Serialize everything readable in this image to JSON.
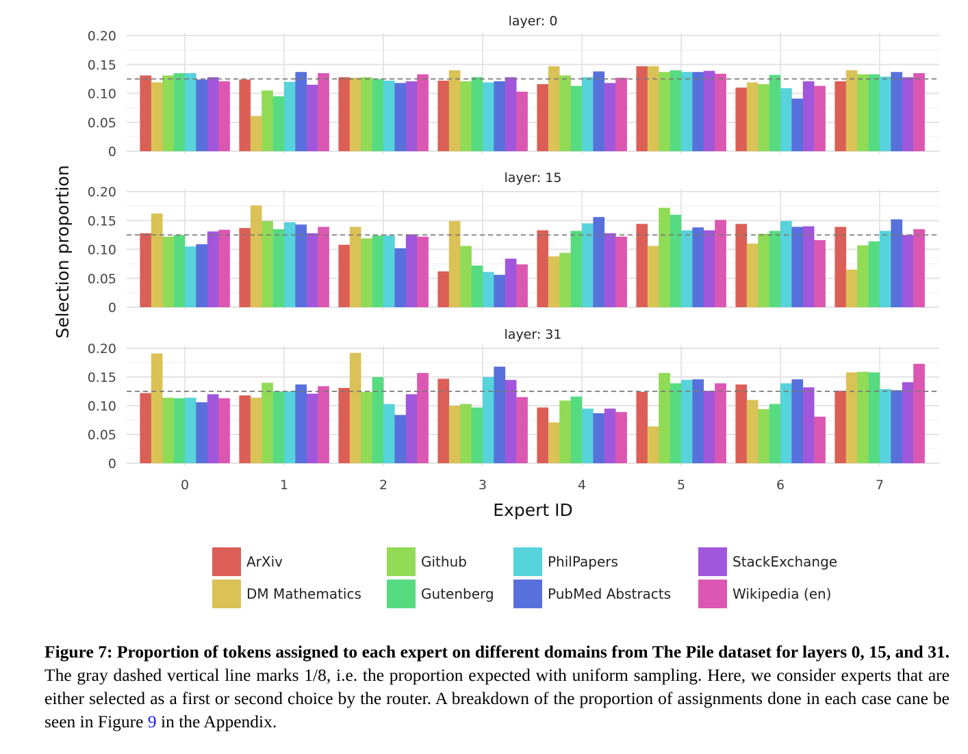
{
  "chart_data": {
    "type": "bar",
    "xlabel": "Expert ID",
    "ylabel": "Selection proportion",
    "ylim": [
      0,
      0.2
    ],
    "yticks": [
      "0",
      "0.05",
      "0.10",
      "0.15",
      "0.20"
    ],
    "yticks_values": [
      0,
      0.05,
      0.1,
      0.15,
      0.2
    ],
    "categories": [
      "0",
      "1",
      "2",
      "3",
      "4",
      "5",
      "6",
      "7"
    ],
    "reference_line": 0.125,
    "grid": true,
    "legend_position": "bottom",
    "series_names": [
      "ArXiv",
      "DM Mathematics",
      "Github",
      "Gutenberg",
      "PhilPapers",
      "PubMed Abstracts",
      "StackExchange",
      "Wikipedia (en)"
    ],
    "series_colors": [
      "#db5f57",
      "#dbc257",
      "#91db57",
      "#57db80",
      "#57d3db",
      "#5770db",
      "#a157db",
      "#db57b2"
    ],
    "legend_order": [
      0,
      2,
      4,
      6,
      1,
      3,
      5,
      7
    ],
    "panels": [
      {
        "title": "layer: 0",
        "values_by_expert": [
          [
            0.131,
            0.119,
            0.131,
            0.135,
            0.135,
            0.124,
            0.128,
            0.121
          ],
          [
            0.124,
            0.061,
            0.105,
            0.095,
            0.12,
            0.137,
            0.115,
            0.135
          ],
          [
            0.128,
            0.127,
            0.128,
            0.125,
            0.122,
            0.118,
            0.121,
            0.133
          ],
          [
            0.122,
            0.14,
            0.121,
            0.128,
            0.119,
            0.121,
            0.128,
            0.103
          ],
          [
            0.116,
            0.147,
            0.131,
            0.113,
            0.128,
            0.138,
            0.118,
            0.127
          ],
          [
            0.147,
            0.147,
            0.137,
            0.14,
            0.137,
            0.137,
            0.139,
            0.134
          ],
          [
            0.11,
            0.119,
            0.116,
            0.132,
            0.109,
            0.091,
            0.121,
            0.113
          ],
          [
            0.121,
            0.14,
            0.133,
            0.133,
            0.129,
            0.137,
            0.128,
            0.135
          ]
        ]
      },
      {
        "title": "layer: 15",
        "values_by_expert": [
          [
            0.128,
            0.162,
            0.122,
            0.125,
            0.105,
            0.109,
            0.131,
            0.134
          ],
          [
            0.137,
            0.176,
            0.149,
            0.135,
            0.147,
            0.143,
            0.128,
            0.139
          ],
          [
            0.108,
            0.139,
            0.119,
            0.124,
            0.124,
            0.102,
            0.126,
            0.122
          ],
          [
            0.062,
            0.149,
            0.106,
            0.072,
            0.061,
            0.056,
            0.084,
            0.074
          ],
          [
            0.133,
            0.088,
            0.094,
            0.132,
            0.145,
            0.156,
            0.128,
            0.122
          ],
          [
            0.144,
            0.106,
            0.172,
            0.16,
            0.133,
            0.138,
            0.133,
            0.151
          ],
          [
            0.144,
            0.11,
            0.127,
            0.132,
            0.149,
            0.139,
            0.14,
            0.116
          ],
          [
            0.139,
            0.065,
            0.107,
            0.114,
            0.132,
            0.152,
            0.125,
            0.135
          ]
        ]
      },
      {
        "title": "layer: 31",
        "values_by_expert": [
          [
            0.122,
            0.191,
            0.114,
            0.113,
            0.114,
            0.106,
            0.12,
            0.113
          ],
          [
            0.118,
            0.114,
            0.14,
            0.125,
            0.125,
            0.137,
            0.121,
            0.134
          ],
          [
            0.131,
            0.192,
            0.124,
            0.15,
            0.103,
            0.084,
            0.12,
            0.157
          ],
          [
            0.147,
            0.1,
            0.103,
            0.097,
            0.15,
            0.168,
            0.145,
            0.115
          ],
          [
            0.097,
            0.071,
            0.109,
            0.116,
            0.095,
            0.087,
            0.095,
            0.089
          ],
          [
            0.124,
            0.064,
            0.157,
            0.139,
            0.145,
            0.146,
            0.126,
            0.139
          ],
          [
            0.137,
            0.11,
            0.094,
            0.103,
            0.139,
            0.146,
            0.132,
            0.081
          ],
          [
            0.126,
            0.158,
            0.159,
            0.158,
            0.129,
            0.127,
            0.141,
            0.173
          ]
        ]
      }
    ]
  },
  "caption": {
    "bold": "Figure 7: Proportion of tokens assigned to each expert on different domains from The Pile dataset for layers 0, 15, and 31.",
    "text": " The gray dashed vertical line marks 1/8, i.e. the proportion expected with uniform sampling. Here, we consider experts that are either selected as a first or second choice by the router. A breakdown of the proportion of assignments done in each case cane be seen in Figure ",
    "ref": "9",
    "tail": " in the Appendix."
  }
}
